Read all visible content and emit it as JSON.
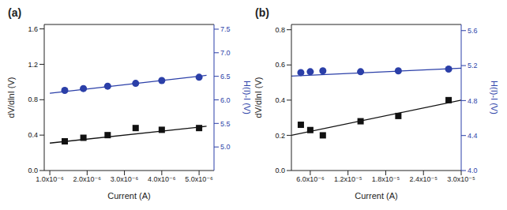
{
  "chart_data": [
    {
      "type": "scatter",
      "title": "(a)",
      "x_label": "Current (A)",
      "y_label": "dV/dlnI (V)",
      "y2_label": "H(I)-I (V)",
      "xlim": [
        8.5e-07,
        5.4e-06
      ],
      "xticks": [
        {
          "value": 1e-06,
          "label": "1.0x10⁻⁶"
        },
        {
          "value": 2e-06,
          "label": "2.0x10⁻⁶"
        },
        {
          "value": 3e-06,
          "label": "3.0x10⁻⁶"
        },
        {
          "value": 4e-06,
          "label": "4.0x10⁻⁶"
        },
        {
          "value": 5e-06,
          "label": "5.0x10⁻⁶"
        }
      ],
      "ylim": [
        0,
        1.65
      ],
      "yticks": [
        {
          "value": 0,
          "label": "0.0"
        },
        0.4,
        0.8,
        1.2,
        1.6
      ],
      "y2lim": [
        4.5,
        7.6
      ],
      "y2ticks": [
        {
          "value": 5,
          "label": "5.0"
        },
        5.5,
        {
          "value": 6,
          "label": "6.0"
        },
        6.5,
        {
          "value": 7,
          "label": "7.0"
        },
        7.5
      ],
      "series": [
        {
          "type": "scatter",
          "marker": "square",
          "color": "#111111",
          "x": [
            1.4e-06,
            1.9e-06,
            2.55e-06,
            3.3e-06,
            4e-06,
            5e-06
          ],
          "values": [
            0.33,
            0.37,
            0.4,
            0.48,
            0.46,
            0.48
          ]
        },
        {
          "type": "line",
          "line_style": "solid",
          "color": "#111111",
          "x": [
            1e-06,
            5.2e-06
          ],
          "values": [
            0.31,
            0.5
          ]
        },
        {
          "type": "scatter",
          "marker": "circle",
          "axis": "y2",
          "color": "#2b3fa8",
          "x": [
            1.4e-06,
            1.9e-06,
            2.55e-06,
            3.3e-06,
            4e-06,
            5e-06
          ],
          "values": [
            6.2,
            6.24,
            6.29,
            6.35,
            6.41,
            6.48
          ]
        },
        {
          "type": "line",
          "line_style": "solid",
          "axis": "y2",
          "color": "#2b3fa8",
          "x": [
            1e-06,
            5.2e-06
          ],
          "values": [
            6.14,
            6.52
          ]
        }
      ]
    },
    {
      "type": "scatter",
      "title": "(b)",
      "x_label": "Current (A)",
      "y_label": "dV/dlnI (V)",
      "y2_label": "H(I)-I (V)",
      "xlim": [
        3e-06,
        3e-05
      ],
      "xticks": [
        {
          "value": 6e-06,
          "label": "6.0x10⁻⁶"
        },
        {
          "value": 1.2e-05,
          "label": "1.2x10⁻⁵"
        },
        {
          "value": 1.8e-05,
          "label": "1.8x10⁻⁵"
        },
        {
          "value": 2.4e-05,
          "label": "2.4x10⁻⁵"
        },
        {
          "value": 3e-05,
          "label": "3.0x10⁻⁵"
        }
      ],
      "ylim": [
        0,
        0.83
      ],
      "yticks": [
        {
          "value": 0,
          "label": "0.0"
        },
        0.2,
        0.4,
        0.6,
        0.8
      ],
      "y2lim": [
        4.0,
        5.67
      ],
      "y2ticks": [
        {
          "value": 4,
          "label": "4.0"
        },
        4.4,
        4.8,
        5.2,
        5.6
      ],
      "series": [
        {
          "type": "scatter",
          "marker": "square",
          "color": "#111111",
          "x": [
            4.5e-06,
            6e-06,
            8e-06,
            1.4e-05,
            2e-05,
            2.8e-05
          ],
          "values": [
            0.26,
            0.23,
            0.2,
            0.28,
            0.31,
            0.4
          ]
        },
        {
          "type": "line",
          "line_style": "solid",
          "color": "#111111",
          "x": [
            3e-06,
            3e-05
          ],
          "values": [
            0.2,
            0.4
          ]
        },
        {
          "type": "scatter",
          "marker": "circle",
          "axis": "y2",
          "color": "#2b3fa8",
          "x": [
            4.5e-06,
            6e-06,
            8e-06,
            1.4e-05,
            2e-05,
            2.8e-05
          ],
          "values": [
            5.12,
            5.13,
            5.14,
            5.13,
            5.14,
            5.16
          ]
        },
        {
          "type": "line",
          "line_style": "solid",
          "axis": "y2",
          "color": "#2b3fa8",
          "x": [
            3e-06,
            3e-05
          ],
          "values": [
            5.08,
            5.17
          ]
        }
      ]
    }
  ]
}
